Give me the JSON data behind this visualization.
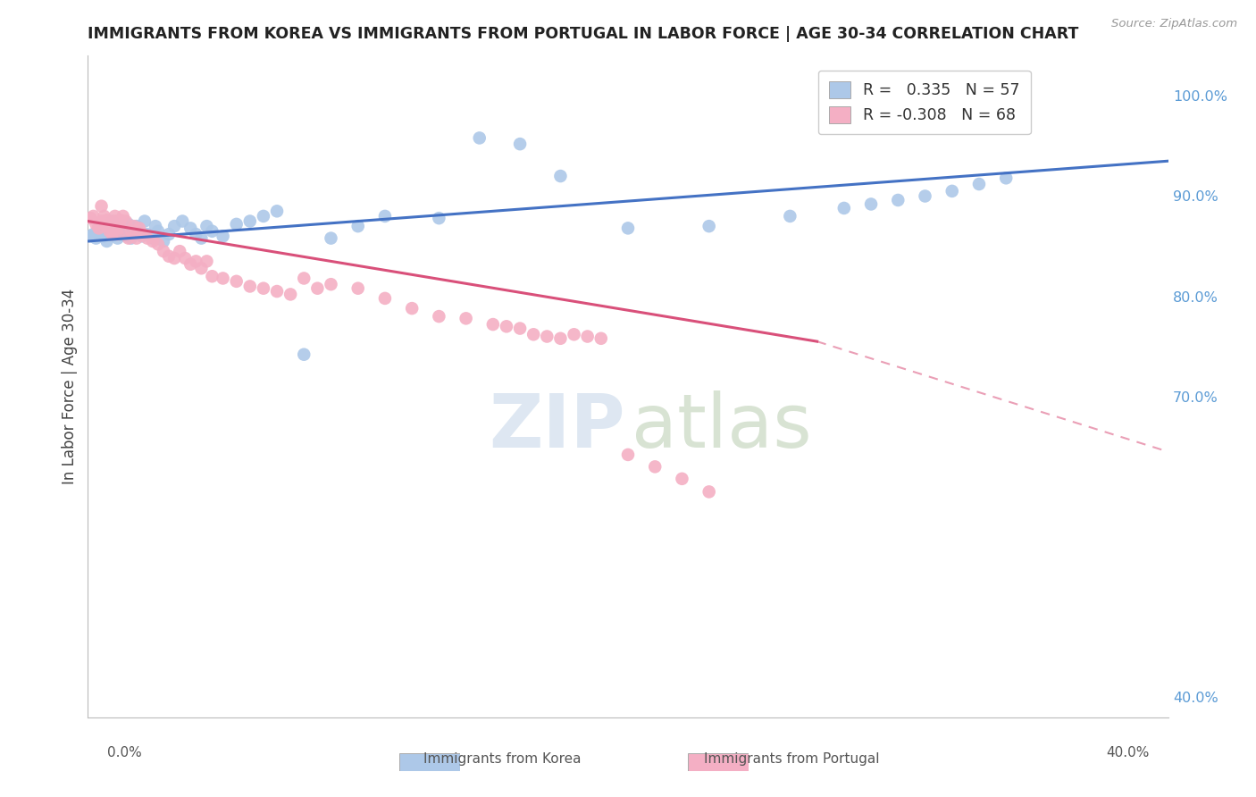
{
  "title": "IMMIGRANTS FROM KOREA VS IMMIGRANTS FROM PORTUGAL IN LABOR FORCE | AGE 30-34 CORRELATION CHART",
  "source": "Source: ZipAtlas.com",
  "ylabel": "In Labor Force | Age 30-34",
  "ylabel_right_labels": [
    "100.0%",
    "90.0%",
    "80.0%",
    "70.0%",
    "40.0%"
  ],
  "ylabel_right_values": [
    1.0,
    0.9,
    0.8,
    0.7,
    0.4
  ],
  "xmin": 0.0,
  "xmax": 0.4,
  "ymin": 0.38,
  "ymax": 1.04,
  "korea_R": 0.335,
  "korea_N": 57,
  "portugal_R": -0.308,
  "portugal_N": 68,
  "korea_color": "#adc8e8",
  "korea_line_color": "#4472c4",
  "portugal_color": "#f4afc4",
  "portugal_line_color": "#d9507a",
  "legend_label_korea": "Immigrants from Korea",
  "legend_label_portugal": "Immigrants from Portugal",
  "background_color": "#ffffff",
  "grid_color": "#d8d8d8",
  "title_color": "#222222",
  "right_axis_color": "#5b9bd5",
  "korea_trend_x0": 0.0,
  "korea_trend_y0": 0.855,
  "korea_trend_x1": 0.4,
  "korea_trend_y1": 0.935,
  "portugal_trend_x0": 0.0,
  "portugal_trend_y0": 0.875,
  "portugal_trend_xsolid": 0.27,
  "portugal_trend_ysolid": 0.755,
  "portugal_trend_x1": 0.4,
  "portugal_trend_y1": 0.645,
  "korea_x": [
    0.001,
    0.002,
    0.003,
    0.004,
    0.005,
    0.006,
    0.007,
    0.008,
    0.009,
    0.01,
    0.011,
    0.011,
    0.012,
    0.013,
    0.014,
    0.015,
    0.016,
    0.017,
    0.018,
    0.02,
    0.021,
    0.022,
    0.024,
    0.025,
    0.026,
    0.028,
    0.03,
    0.032,
    0.035,
    0.038,
    0.04,
    0.042,
    0.044,
    0.046,
    0.05,
    0.055,
    0.06,
    0.065,
    0.07,
    0.08,
    0.09,
    0.1,
    0.11,
    0.13,
    0.145,
    0.16,
    0.175,
    0.2,
    0.23,
    0.26,
    0.28,
    0.29,
    0.3,
    0.31,
    0.32,
    0.33,
    0.34
  ],
  "korea_y": [
    0.86,
    0.862,
    0.858,
    0.87,
    0.865,
    0.86,
    0.855,
    0.87,
    0.875,
    0.862,
    0.858,
    0.868,
    0.862,
    0.87,
    0.86,
    0.872,
    0.858,
    0.865,
    0.87,
    0.86,
    0.875,
    0.862,
    0.858,
    0.87,
    0.865,
    0.855,
    0.862,
    0.87,
    0.875,
    0.868,
    0.862,
    0.858,
    0.87,
    0.865,
    0.86,
    0.872,
    0.875,
    0.88,
    0.885,
    0.742,
    0.858,
    0.87,
    0.88,
    0.878,
    0.958,
    0.952,
    0.92,
    0.868,
    0.87,
    0.88,
    0.888,
    0.892,
    0.896,
    0.9,
    0.905,
    0.912,
    0.918
  ],
  "portugal_x": [
    0.001,
    0.002,
    0.003,
    0.004,
    0.005,
    0.005,
    0.006,
    0.006,
    0.007,
    0.007,
    0.008,
    0.008,
    0.009,
    0.009,
    0.01,
    0.01,
    0.011,
    0.011,
    0.012,
    0.012,
    0.013,
    0.014,
    0.015,
    0.016,
    0.017,
    0.018,
    0.019,
    0.02,
    0.022,
    0.024,
    0.026,
    0.028,
    0.03,
    0.032,
    0.034,
    0.036,
    0.038,
    0.04,
    0.042,
    0.044,
    0.046,
    0.05,
    0.055,
    0.06,
    0.065,
    0.07,
    0.075,
    0.08,
    0.085,
    0.09,
    0.1,
    0.11,
    0.12,
    0.13,
    0.14,
    0.15,
    0.155,
    0.16,
    0.165,
    0.17,
    0.175,
    0.18,
    0.185,
    0.19,
    0.2,
    0.21,
    0.22,
    0.23
  ],
  "portugal_y": [
    0.878,
    0.88,
    0.872,
    0.868,
    0.875,
    0.89,
    0.872,
    0.88,
    0.87,
    0.876,
    0.865,
    0.873,
    0.862,
    0.87,
    0.875,
    0.88,
    0.862,
    0.87,
    0.868,
    0.876,
    0.88,
    0.875,
    0.858,
    0.865,
    0.87,
    0.858,
    0.868,
    0.862,
    0.858,
    0.855,
    0.852,
    0.845,
    0.84,
    0.838,
    0.845,
    0.838,
    0.832,
    0.835,
    0.828,
    0.835,
    0.82,
    0.818,
    0.815,
    0.81,
    0.808,
    0.805,
    0.802,
    0.818,
    0.808,
    0.812,
    0.808,
    0.798,
    0.788,
    0.78,
    0.778,
    0.772,
    0.77,
    0.768,
    0.762,
    0.76,
    0.758,
    0.762,
    0.76,
    0.758,
    0.642,
    0.63,
    0.618,
    0.605
  ]
}
